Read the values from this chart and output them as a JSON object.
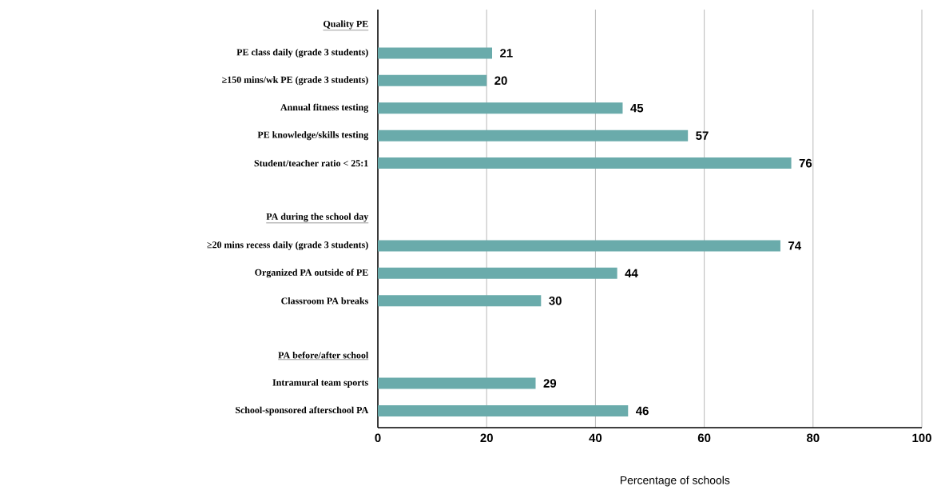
{
  "chart_data": {
    "type": "bar",
    "orientation": "horizontal",
    "categories": [
      "Quality PE",
      "PE class daily (grade 3 students)",
      "≥150 mins/wk PE (grade 3 students)",
      "Annual fitness testing",
      "PE knowledge/skills testing",
      "Student/teacher ratio < 25:1",
      null,
      "PA during the school day",
      "≥20 mins recess daily (grade 3 students)",
      "Organized PA outside of PE",
      "Classroom PA breaks",
      null,
      "PA before/after school",
      "Intramural team sports",
      "School-sponsored afterschool PA"
    ],
    "values": [
      null,
      21,
      20,
      45,
      57,
      76,
      null,
      null,
      74,
      44,
      30,
      null,
      null,
      29,
      46
    ],
    "color": "#6aabab",
    "xlabel": "Percentage of schools",
    "xlim": [
      0,
      100
    ],
    "xticks": [
      0,
      20,
      40,
      60,
      80,
      100
    ],
    "grid": "x",
    "data_labels": true
  }
}
